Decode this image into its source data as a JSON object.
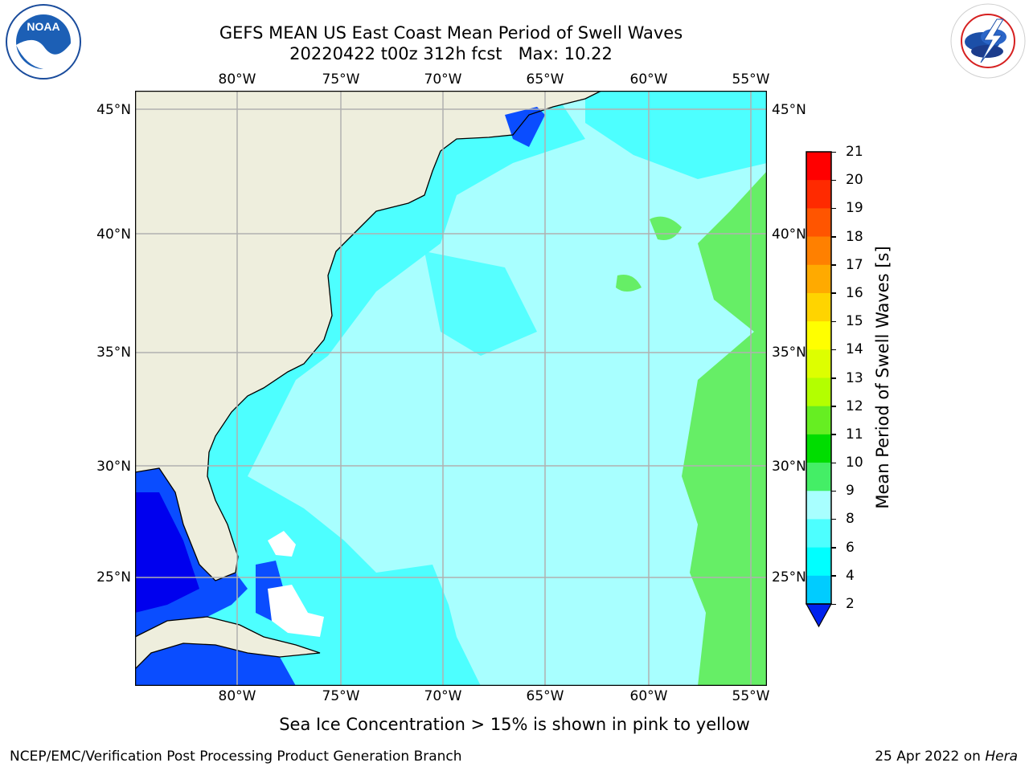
{
  "header": {
    "title_line1": "GEFS MEAN US East Coast Mean Period of Swell Waves",
    "title_line2": "20220422 t00z 312h fcst   Max: 10.22"
  },
  "logos": {
    "left": "NOAA",
    "left_ring": "NATIONAL OCEANIC AND ATMOSPHERIC ADMINISTRATION · U.S. DEPARTMENT OF COMMERCE",
    "right_ring": "NATIONAL WEATHER SERVICE"
  },
  "map": {
    "lon_labels": [
      "80°W",
      "75°W",
      "70°W",
      "65°W",
      "60°W",
      "55°W"
    ],
    "lat_labels": [
      "45°N",
      "40°N",
      "35°N",
      "30°N",
      "25°N"
    ],
    "colors": {
      "land": "#eeeedd",
      "ocean_light": "#a8ffff",
      "ocean_mid": "#4dffff",
      "ocean_green": "#66ee66",
      "ocean_blue": "#0a4dff",
      "ocean_deep": "#0000ee",
      "grid": "#b0b0b0"
    }
  },
  "colorbar": {
    "label": "Mean Period of Swell Waves [s]",
    "ticks": [
      "21",
      "20",
      "19",
      "18",
      "17",
      "16",
      "15",
      "14",
      "13",
      "12",
      "11",
      "10",
      "9",
      "8",
      "6",
      "4",
      "2"
    ],
    "colors": [
      "#ff0000",
      "#ff2a00",
      "#ff5500",
      "#ff8000",
      "#ffaa00",
      "#ffd400",
      "#ffff00",
      "#ddff00",
      "#b3ff00",
      "#66ee22",
      "#00dd00",
      "#44ee66",
      "#a8ffff",
      "#4dffff",
      "#00ffff",
      "#00ccff",
      "#0a66ff"
    ],
    "extend_color": "#0022ee"
  },
  "footer": {
    "note": "Sea Ice Concentration > 15% is shown in pink to yellow",
    "credit": "NCEP/EMC/Verification Post Processing Product Generation Branch",
    "date": "25 Apr 2022 on",
    "machine": "Hera"
  }
}
